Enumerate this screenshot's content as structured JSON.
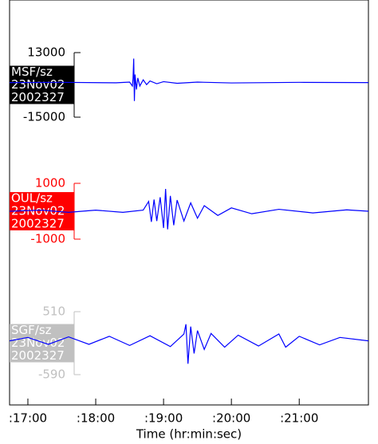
{
  "chart_data": [
    {
      "type": "line",
      "labels": [
        "MSF/sz",
        "23Nov02",
        "2002327"
      ],
      "label_color": "#000000",
      "xlim": [
        16.73,
        22.02
      ],
      "ylim": [
        -15000,
        13000
      ],
      "yticks": [
        13000,
        -15000
      ],
      "series": [
        {
          "color": "#0000ff",
          "x": [
            16.73,
            17.5,
            18.3,
            18.5,
            18.54,
            18.55,
            18.56,
            18.57,
            18.58,
            18.6,
            18.62,
            18.65,
            18.7,
            18.75,
            18.8,
            18.9,
            19.0,
            19.2,
            19.5,
            20.0,
            21.0,
            22.02
          ],
          "values": [
            0,
            100,
            -100,
            200,
            -1500,
            1800,
            10400,
            -8000,
            3500,
            -3000,
            2000,
            -1500,
            1200,
            -900,
            700,
            -500,
            400,
            -300,
            200,
            -150,
            100,
            0
          ]
        }
      ]
    },
    {
      "type": "line",
      "labels": [
        "OUL/sz",
        "23Nov02",
        "2002327"
      ],
      "label_color": "#ff0000",
      "xlim": [
        16.73,
        22.02
      ],
      "ylim": [
        -1000,
        1000
      ],
      "yticks": [
        1000,
        -1000
      ],
      "series": [
        {
          "color": "#0000ff",
          "x": [
            16.73,
            17.2,
            17.6,
            18.0,
            18.4,
            18.7,
            18.78,
            18.82,
            18.86,
            18.9,
            18.95,
            19.0,
            19.03,
            19.06,
            19.1,
            19.15,
            19.2,
            19.3,
            19.4,
            19.5,
            19.6,
            19.8,
            20.0,
            20.3,
            20.7,
            21.2,
            21.7,
            22.02
          ],
          "values": [
            0,
            40,
            -40,
            40,
            -40,
            40,
            350,
            -380,
            420,
            -350,
            500,
            -600,
            800,
            -650,
            550,
            -500,
            400,
            -350,
            300,
            -250,
            200,
            -150,
            120,
            -90,
            70,
            -60,
            50,
            0
          ]
        }
      ]
    },
    {
      "type": "line",
      "labels": [
        "SGF/sz",
        "23Nov02",
        "2002327"
      ],
      "label_color": "#c0c0c0",
      "xlim": [
        16.73,
        22.02
      ],
      "ylim": [
        -590,
        510
      ],
      "yticks": [
        510,
        -590
      ],
      "xlabel": "Time (hr:min:sec)",
      "xticks": [
        {
          "value": 17,
          "label": ":17:00"
        },
        {
          "value": 18,
          "label": ":18:00"
        },
        {
          "value": 19,
          "label": ":19:00"
        },
        {
          "value": 20,
          "label": ":20:00"
        },
        {
          "value": 21,
          "label": ":21:00"
        }
      ],
      "series": [
        {
          "color": "#0000ff",
          "x": [
            16.73,
            17.0,
            17.3,
            17.6,
            17.9,
            18.2,
            18.5,
            18.8,
            19.1,
            19.3,
            19.33,
            19.36,
            19.4,
            19.45,
            19.5,
            19.6,
            19.7,
            19.9,
            20.1,
            20.4,
            20.7,
            20.8,
            21.0,
            21.3,
            21.6,
            22.02
          ],
          "values": [
            0,
            60,
            -60,
            70,
            -60,
            80,
            -80,
            90,
            -100,
            120,
            290,
            -400,
            250,
            -220,
            180,
            -150,
            130,
            -110,
            100,
            -90,
            120,
            -110,
            80,
            -70,
            60,
            0
          ]
        }
      ]
    }
  ]
}
